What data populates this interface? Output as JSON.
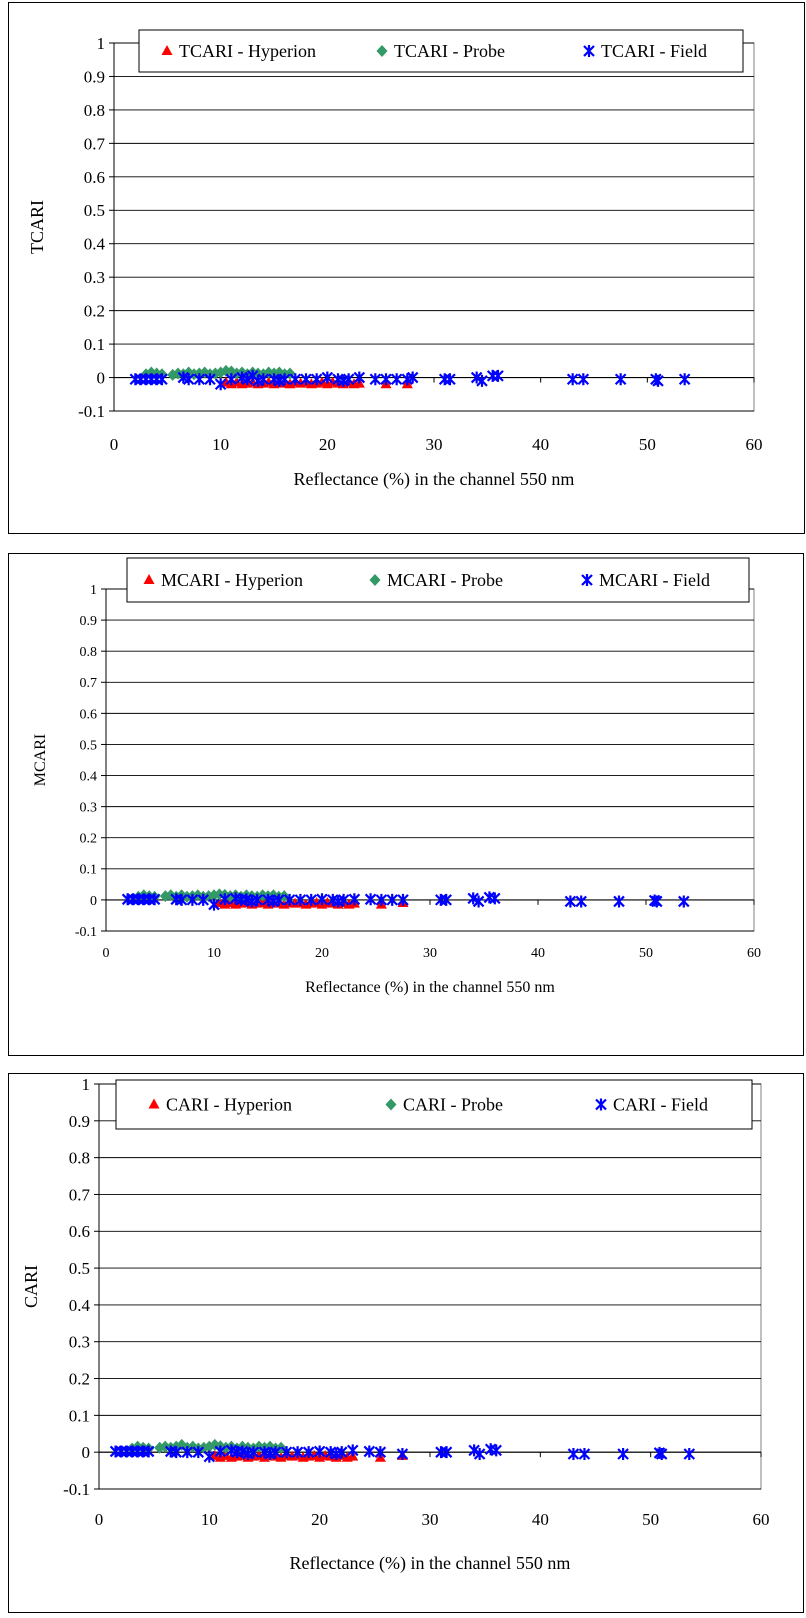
{
  "chart_data": [
    {
      "type": "scatter",
      "ylabel": "TCARI",
      "xlabel": "Reflectance (%) in the channel 550 nm",
      "xlim": [
        0,
        60
      ],
      "ylim": [
        -0.1,
        1
      ],
      "x_ticks": [
        "0",
        "10",
        "20",
        "30",
        "40",
        "50",
        "60"
      ],
      "y_ticks": [
        "-0.1",
        "0",
        "0.1",
        "0.2",
        "0.3",
        "0.4",
        "0.5",
        "0.6",
        "0.7",
        "0.8",
        "0.9",
        "1"
      ],
      "grid": "horizontal",
      "legend_position": "top",
      "series": [
        {
          "name": "TCARI - Hyperion",
          "marker": "triangle",
          "color": "#ff0000",
          "x": [
            10.5,
            11,
            11.5,
            12,
            12.5,
            13,
            13.5,
            14,
            14.5,
            15,
            15.5,
            16,
            16.5,
            17,
            17.5,
            18,
            18.5,
            19,
            19.5,
            20,
            20.5,
            21,
            21.5,
            22,
            22.5,
            23,
            25.5,
            27.5
          ],
          "y": [
            -0.015,
            -0.02,
            -0.015,
            -0.02,
            -0.018,
            -0.015,
            -0.02,
            -0.018,
            -0.015,
            -0.02,
            -0.015,
            -0.018,
            -0.02,
            -0.015,
            -0.018,
            -0.015,
            -0.02,
            -0.018,
            -0.015,
            -0.02,
            -0.015,
            -0.018,
            -0.02,
            -0.015,
            -0.02,
            -0.018,
            -0.02,
            -0.02
          ]
        },
        {
          "name": "TCARI - Probe",
          "marker": "diamond",
          "color": "#339966",
          "x": [
            3,
            3.5,
            4,
            4.5,
            5.5,
            6,
            6.5,
            7,
            7.5,
            8,
            8.5,
            9,
            9.5,
            10,
            10.5,
            11,
            11.5,
            12,
            12.5,
            13,
            13.5,
            14,
            14.5,
            15,
            15.5,
            16,
            16.5
          ],
          "y": [
            0.01,
            0.015,
            0.012,
            0.01,
            0.008,
            0.012,
            0.01,
            0.015,
            0.01,
            0.012,
            0.015,
            0.01,
            0.012,
            0.015,
            0.02,
            0.018,
            0.012,
            0.015,
            0.01,
            0.015,
            0.012,
            0.01,
            0.015,
            0.012,
            0.015,
            0.01,
            0.012
          ]
        },
        {
          "name": "TCARI - Field",
          "marker": "star",
          "color": "#0000ff",
          "x": [
            2,
            2.5,
            3,
            3.5,
            4,
            4.5,
            6.5,
            7,
            8,
            9,
            10,
            11,
            12,
            12.5,
            13,
            13.5,
            14,
            15,
            15.5,
            16,
            17,
            18,
            19,
            20,
            21,
            21.5,
            22,
            23,
            24.5,
            25.5,
            26.5,
            27.5,
            28,
            31,
            31.5,
            34,
            34.5,
            35.5,
            36,
            43,
            44,
            47.5,
            50.8,
            51,
            53.5
          ],
          "y": [
            -0.005,
            -0.005,
            -0.005,
            -0.005,
            -0.005,
            -0.005,
            0,
            -0.005,
            -0.005,
            -0.005,
            -0.02,
            -0.005,
            0,
            -0.005,
            0.005,
            -0.01,
            -0.005,
            -0.005,
            -0.01,
            -0.005,
            -0.005,
            -0.005,
            -0.005,
            0,
            -0.005,
            -0.01,
            -0.005,
            0,
            -0.005,
            -0.005,
            -0.005,
            -0.005,
            0,
            -0.005,
            -0.005,
            0,
            -0.01,
            0.005,
            0.005,
            -0.005,
            -0.005,
            -0.005,
            -0.005,
            -0.01,
            -0.005
          ]
        }
      ]
    },
    {
      "type": "scatter",
      "ylabel": "MCARI",
      "xlabel": "Reflectance (%) in the channel 550 nm",
      "xlim": [
        0,
        60
      ],
      "ylim": [
        -0.1,
        1
      ],
      "x_ticks": [
        "0",
        "10",
        "20",
        "30",
        "40",
        "50",
        "60"
      ],
      "y_ticks": [
        "-0.1",
        "0",
        "0.1",
        "0.2",
        "0.3",
        "0.4",
        "0.5",
        "0.6",
        "0.7",
        "0.8",
        "0.9",
        "1"
      ],
      "grid": "horizontal",
      "legend_position": "top",
      "series": [
        {
          "name": "MCARI - Hyperion",
          "marker": "triangle",
          "color": "#ff0000",
          "x": [
            10.5,
            11,
            11.5,
            12,
            12.5,
            13,
            13.5,
            14,
            14.5,
            15,
            15.5,
            16,
            16.5,
            17,
            17.5,
            18,
            18.5,
            19,
            19.5,
            20,
            20.5,
            21,
            21.5,
            22,
            22.5,
            23,
            25.5,
            27.5
          ],
          "y": [
            -0.01,
            -0.015,
            -0.01,
            -0.015,
            -0.012,
            -0.01,
            -0.015,
            -0.012,
            -0.01,
            -0.015,
            -0.01,
            -0.012,
            -0.015,
            -0.01,
            -0.012,
            -0.01,
            -0.015,
            -0.012,
            -0.01,
            -0.015,
            -0.01,
            -0.012,
            -0.015,
            -0.01,
            -0.015,
            -0.012,
            -0.015,
            -0.01
          ]
        },
        {
          "name": "MCARI - Probe",
          "marker": "diamond",
          "color": "#339966",
          "x": [
            3,
            3.5,
            4,
            4.5,
            5.5,
            6,
            6.5,
            7,
            7.5,
            8,
            8.5,
            9,
            9.5,
            10,
            10.5,
            11,
            11.5,
            12,
            12.5,
            13,
            13.5,
            14,
            14.5,
            15,
            15.5,
            16,
            16.5
          ],
          "y": [
            0.01,
            0.015,
            0.012,
            0.01,
            0.012,
            0.015,
            0.01,
            0.015,
            0.01,
            0.012,
            0.015,
            0.01,
            0.012,
            0.015,
            0.018,
            0.016,
            0.012,
            0.015,
            0.01,
            0.015,
            0.012,
            0.01,
            0.015,
            0.012,
            0.015,
            0.01,
            0.012
          ]
        },
        {
          "name": "MCARI - Field",
          "marker": "star",
          "color": "#0000ff",
          "x": [
            2,
            2.5,
            3,
            3.5,
            4,
            4.5,
            6.5,
            7,
            8,
            9,
            10,
            11,
            12,
            12.5,
            13,
            13.5,
            14,
            15,
            15.5,
            16,
            17,
            18,
            19,
            20,
            21,
            21.5,
            22,
            23,
            24.5,
            25.5,
            26.5,
            27.5,
            31,
            31.5,
            34,
            34.5,
            35.5,
            36,
            43,
            44,
            47.5,
            50.8,
            51,
            53.5
          ],
          "y": [
            0.002,
            0.002,
            0.002,
            0.002,
            0.002,
            0.002,
            0.002,
            0,
            0,
            0,
            -0.015,
            0.002,
            0.005,
            0,
            0.002,
            -0.005,
            0,
            0,
            -0.005,
            0,
            0,
            0,
            0,
            0.002,
            0,
            -0.005,
            0,
            0.002,
            0.002,
            0,
            0,
            0,
            0,
            0,
            0.005,
            -0.005,
            0.008,
            0.005,
            -0.005,
            -0.005,
            -0.005,
            -0.002,
            -0.005,
            -0.005
          ]
        }
      ]
    },
    {
      "type": "scatter",
      "ylabel": "CARI",
      "xlabel": "Reflectance (%) in the channel 550 nm",
      "xlim": [
        0,
        60
      ],
      "ylim": [
        -0.1,
        1
      ],
      "x_ticks": [
        "0",
        "10",
        "20",
        "30",
        "40",
        "50",
        "60"
      ],
      "y_ticks": [
        "-0.1",
        "0",
        "0.1",
        "0.2",
        "0.3",
        "0.4",
        "0.5",
        "0.6",
        "0.7",
        "0.8",
        "0.9",
        "1"
      ],
      "grid": "horizontal",
      "legend_position": "top",
      "series": [
        {
          "name": "CARI - Hyperion",
          "marker": "triangle",
          "color": "#ff0000",
          "x": [
            10.5,
            11,
            11.5,
            12,
            12.5,
            13,
            13.5,
            14,
            14.5,
            15,
            15.5,
            16,
            16.5,
            17,
            17.5,
            18,
            18.5,
            19,
            19.5,
            20,
            20.5,
            21,
            21.5,
            22,
            22.5,
            23,
            25.5,
            27.5
          ],
          "y": [
            -0.01,
            -0.015,
            -0.01,
            -0.015,
            -0.012,
            -0.01,
            -0.015,
            -0.012,
            -0.01,
            -0.015,
            -0.01,
            -0.012,
            -0.015,
            -0.01,
            -0.012,
            -0.01,
            -0.015,
            -0.012,
            -0.01,
            -0.015,
            -0.01,
            -0.012,
            -0.015,
            -0.01,
            -0.015,
            -0.012,
            -0.015,
            -0.01
          ]
        },
        {
          "name": "CARI - Probe",
          "marker": "diamond",
          "color": "#339966",
          "x": [
            3,
            3.5,
            4,
            4.5,
            5.5,
            6,
            6.5,
            7,
            7.5,
            8,
            8.5,
            9,
            9.5,
            10,
            10.5,
            11,
            11.5,
            12,
            12.5,
            13,
            13.5,
            14,
            14.5,
            15,
            15.5,
            16,
            16.5
          ],
          "y": [
            0.01,
            0.015,
            0.012,
            0.01,
            0.012,
            0.015,
            0.012,
            0.015,
            0.02,
            0.012,
            0.015,
            0.01,
            0.012,
            0.015,
            0.02,
            0.016,
            0.012,
            0.015,
            0.01,
            0.015,
            0.012,
            0.01,
            0.015,
            0.012,
            0.015,
            0.01,
            0.012
          ]
        },
        {
          "name": "CARI - Field",
          "marker": "star",
          "color": "#0000ff",
          "x": [
            1.5,
            2,
            2.5,
            3,
            3.5,
            4,
            4.5,
            6.5,
            7,
            8,
            9,
            10,
            11,
            12,
            12.5,
            13,
            13.5,
            14,
            15,
            15.5,
            16,
            17,
            18,
            19,
            20,
            21,
            21.5,
            22,
            23,
            24.5,
            25.5,
            27.5,
            31,
            31.5,
            34,
            34.5,
            35.5,
            36,
            43,
            44,
            47.5,
            50.8,
            51,
            53.5
          ],
          "y": [
            0.002,
            0.002,
            0.002,
            0.002,
            0.002,
            0.002,
            0.002,
            0.002,
            0,
            0,
            0,
            -0.012,
            0.002,
            0.005,
            0,
            0.002,
            -0.005,
            0,
            0,
            -0.005,
            0,
            0,
            0,
            0,
            0.002,
            0,
            -0.005,
            0,
            0.005,
            0.002,
            0,
            -0.005,
            0,
            0,
            0.005,
            -0.005,
            0.008,
            0.005,
            -0.005,
            -0.005,
            -0.005,
            -0.002,
            -0.005,
            -0.005
          ]
        }
      ]
    }
  ]
}
